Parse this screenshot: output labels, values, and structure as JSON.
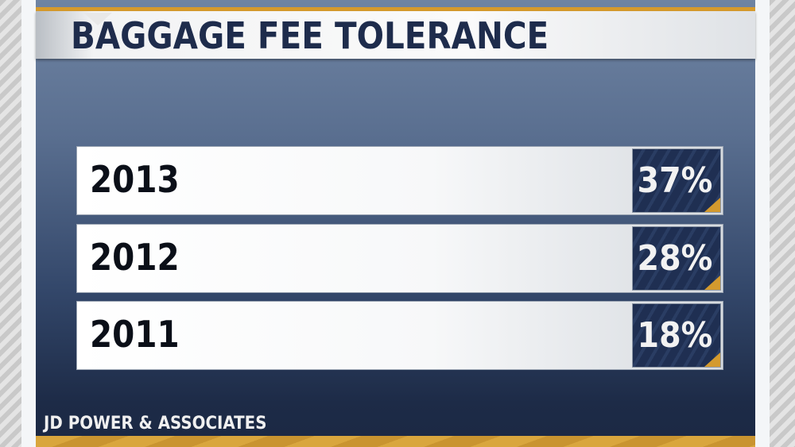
{
  "title": "BAGGAGE FEE TOLERANCE",
  "source": "JD POWER & ASSOCIATES",
  "colors": {
    "navy": "#1e2c4c",
    "gold": "#d69a2c"
  },
  "chart_data": {
    "type": "table",
    "title": "BAGGAGE FEE TOLERANCE",
    "categories": [
      "2013",
      "2012",
      "2011"
    ],
    "values": [
      37,
      28,
      18
    ],
    "labels": [
      "37%",
      "28%",
      "18%"
    ],
    "rows": [
      {
        "year": "2013",
        "value": "37%"
      },
      {
        "year": "2012",
        "value": "28%"
      },
      {
        "year": "2011",
        "value": "18%"
      }
    ]
  }
}
